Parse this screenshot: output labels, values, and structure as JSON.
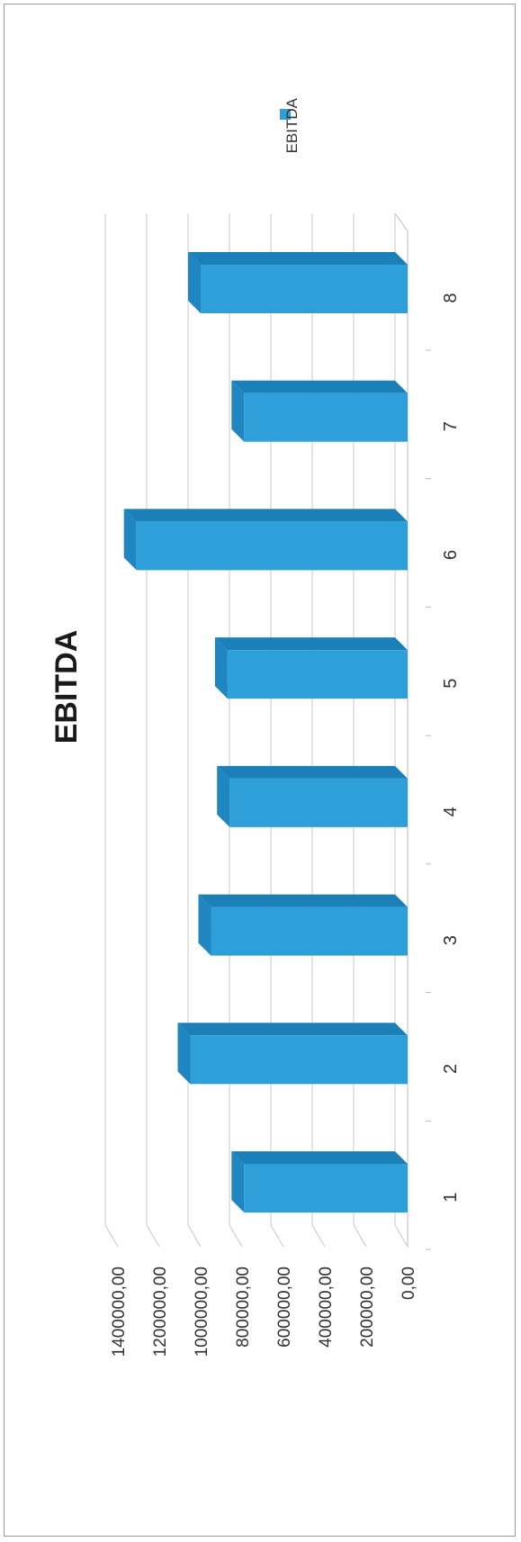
{
  "chart_data": {
    "type": "bar",
    "title": "EBITDA",
    "categories": [
      "1",
      "2",
      "3",
      "4",
      "5",
      "6",
      "7",
      "8"
    ],
    "series": [
      {
        "name": "EBITDA",
        "values": [
          790000,
          1050000,
          950000,
          860000,
          870000,
          1310000,
          790000,
          1000000
        ]
      }
    ],
    "ylim": [
      0,
      1400000
    ],
    "yticks": [
      "0,00",
      "200000,00",
      "400000,00",
      "600000,00",
      "800000,00",
      "1000000,00",
      "1200000,00",
      "1400000,00"
    ],
    "grid": true,
    "legend": "top-right",
    "style": "3d-column",
    "orientation": "rotated-90"
  },
  "colors": {
    "bar_front": "#2e9fd8",
    "bar_top": "#1b7fb8",
    "bar_side": "#1f86c2",
    "gridline": "#c8c8c8",
    "frame": "#9a9a9a"
  }
}
